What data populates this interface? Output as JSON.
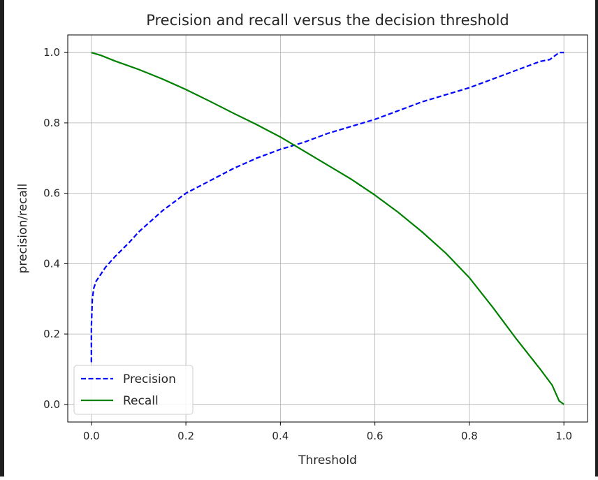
{
  "chart_data": {
    "type": "line",
    "title": "Precision and recall versus the decision threshold",
    "xlabel": "Threshold",
    "ylabel": "precision/recall",
    "xlim": [
      -0.05,
      1.05
    ],
    "ylim": [
      -0.05,
      1.05
    ],
    "x_ticks": [
      0.0,
      0.2,
      0.4,
      0.6,
      0.8,
      1.0
    ],
    "x_tick_labels": [
      "0.0",
      "0.2",
      "0.4",
      "0.6",
      "0.8",
      "1.0"
    ],
    "y_ticks": [
      0.0,
      0.2,
      0.4,
      0.6,
      0.8,
      1.0
    ],
    "y_tick_labels": [
      "0.0",
      "0.2",
      "0.4",
      "0.6",
      "0.8",
      "1.0"
    ],
    "grid": true,
    "legend_position": "lower-left",
    "series": [
      {
        "name": "Precision",
        "color": "#0000ff",
        "style": "dashed",
        "x": [
          0.0,
          0.0,
          0.002,
          0.005,
          0.01,
          0.02,
          0.03,
          0.05,
          0.08,
          0.1,
          0.15,
          0.2,
          0.25,
          0.3,
          0.35,
          0.4,
          0.45,
          0.5,
          0.55,
          0.6,
          0.65,
          0.7,
          0.75,
          0.8,
          0.85,
          0.9,
          0.95,
          0.97,
          0.985,
          0.99,
          1.0
        ],
        "y": [
          0.12,
          0.22,
          0.3,
          0.33,
          0.35,
          0.37,
          0.39,
          0.42,
          0.46,
          0.49,
          0.55,
          0.6,
          0.635,
          0.67,
          0.7,
          0.725,
          0.745,
          0.77,
          0.79,
          0.81,
          0.835,
          0.86,
          0.88,
          0.9,
          0.925,
          0.95,
          0.975,
          0.98,
          0.995,
          1.0,
          1.0
        ]
      },
      {
        "name": "Recall",
        "color": "#008000",
        "style": "solid",
        "x": [
          0.0,
          0.02,
          0.05,
          0.1,
          0.15,
          0.2,
          0.25,
          0.3,
          0.35,
          0.4,
          0.45,
          0.5,
          0.55,
          0.6,
          0.65,
          0.7,
          0.75,
          0.8,
          0.85,
          0.9,
          0.95,
          0.975,
          0.99,
          1.0
        ],
        "y": [
          1.0,
          0.992,
          0.976,
          0.952,
          0.925,
          0.895,
          0.862,
          0.828,
          0.795,
          0.76,
          0.72,
          0.68,
          0.64,
          0.595,
          0.545,
          0.49,
          0.43,
          0.36,
          0.275,
          0.185,
          0.1,
          0.055,
          0.01,
          0.0
        ]
      }
    ]
  }
}
